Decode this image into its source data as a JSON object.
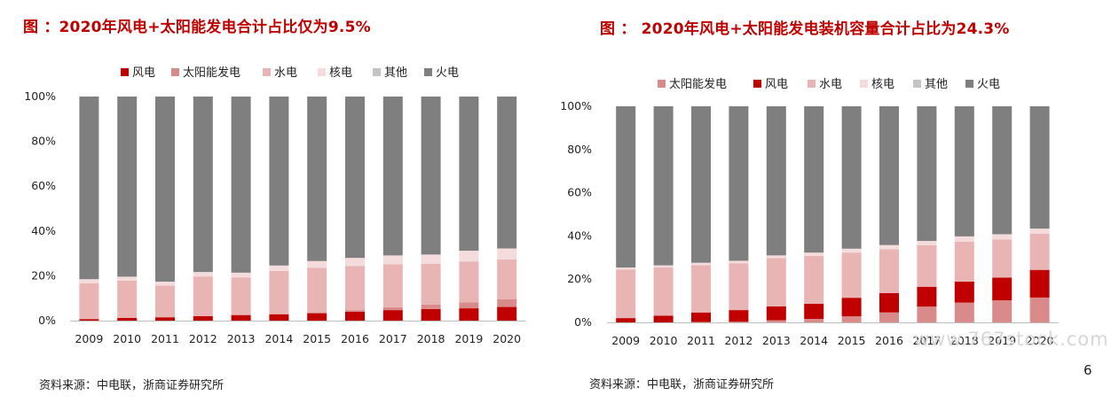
{
  "page": {
    "page_number": "6",
    "watermark": "www.767stock.com"
  },
  "left": {
    "title": "图 ：2020年风电+太阳能发电合计占比仅为9.5%",
    "source": "资料来源：中电联，浙商证券研究所"
  },
  "right": {
    "title": "图 ： 2020年风电+太阳能发电装机容量合计占比为24.3%",
    "source": "资料来源：中电联，浙商证券研究所"
  },
  "colors": {
    "风电": "#c00000",
    "太阳能发电": "#d98a8a",
    "水电": "#e8b4b4",
    "核电": "#f4dcdc",
    "其他": "#c4c4c4",
    "火电": "#7f7f7f"
  },
  "chart_data": [
    {
      "type": "bar",
      "stacked": true,
      "categories": [
        "2009",
        "2010",
        "2011",
        "2012",
        "2013",
        "2014",
        "2015",
        "2016",
        "2017",
        "2018",
        "2019",
        "2020"
      ],
      "legend_position": "top",
      "ylim": [
        0,
        100
      ],
      "ytick_labels": [
        "0%",
        "20%",
        "40%",
        "60%",
        "80%",
        "100%"
      ],
      "series": [
        {
          "name": "风电",
          "values": [
            0.7,
            1.2,
            1.5,
            2.0,
            2.5,
            2.8,
            3.3,
            4.0,
            4.7,
            5.2,
            5.5,
            6.1
          ]
        },
        {
          "name": "太阳能发电",
          "values": [
            0,
            0,
            0,
            0.1,
            0.1,
            0.2,
            0.4,
            0.7,
            1.3,
            2.0,
            2.7,
            3.4
          ]
        },
        {
          "name": "水电",
          "values": [
            15.9,
            16.6,
            14.1,
            17.6,
            16.7,
            19.2,
            19.9,
            19.7,
            19.2,
            18.1,
            18.2,
            17.8
          ]
        },
        {
          "name": "核电",
          "values": [
            1.9,
            1.8,
            1.8,
            2.0,
            2.1,
            2.4,
            3.0,
            3.6,
            3.9,
            4.2,
            4.8,
            4.9
          ]
        },
        {
          "name": "其他",
          "values": [
            0,
            0,
            0,
            0,
            0,
            0,
            0,
            0,
            0,
            0,
            0,
            0
          ]
        },
        {
          "name": "火电",
          "values": [
            81.5,
            80.4,
            82.6,
            78.3,
            78.6,
            75.4,
            73.4,
            72.0,
            70.9,
            70.5,
            68.8,
            67.8
          ]
        }
      ]
    },
    {
      "type": "bar",
      "stacked": true,
      "categories": [
        "2009",
        "2010",
        "2011",
        "2012",
        "2013",
        "2014",
        "2015",
        "2016",
        "2017",
        "2018",
        "2019",
        "2020"
      ],
      "legend_position": "top",
      "ylim": [
        0,
        100
      ],
      "ytick_labels": [
        "0%",
        "20%",
        "40%",
        "60%",
        "80%",
        "100%"
      ],
      "series": [
        {
          "name": "太阳能发电",
          "values": [
            0,
            0,
            0.2,
            0.3,
            1.0,
            1.6,
            2.8,
            4.6,
            7.3,
            9.2,
            10.2,
            11.5
          ]
        },
        {
          "name": "风电",
          "values": [
            2.0,
            3.1,
            4.4,
            5.4,
            6.4,
            7.0,
            8.6,
            9.0,
            9.2,
            9.7,
            10.5,
            12.8
          ]
        },
        {
          "name": "水电",
          "values": [
            22.5,
            22.3,
            21.9,
            21.7,
            22.4,
            22.2,
            20.9,
            20.2,
            19.2,
            18.5,
            17.7,
            16.8
          ]
        },
        {
          "name": "核电",
          "values": [
            0.9,
            1.0,
            1.1,
            1.1,
            1.2,
            1.5,
            1.8,
            2.0,
            2.0,
            2.4,
            2.4,
            2.3
          ]
        },
        {
          "name": "其他",
          "values": [
            0,
            0,
            0,
            0,
            0,
            0,
            0,
            0,
            0,
            0,
            0,
            0
          ]
        },
        {
          "name": "火电",
          "values": [
            74.6,
            73.6,
            72.4,
            71.5,
            69.0,
            67.7,
            65.9,
            64.2,
            62.3,
            60.2,
            59.2,
            56.6
          ]
        }
      ]
    }
  ]
}
